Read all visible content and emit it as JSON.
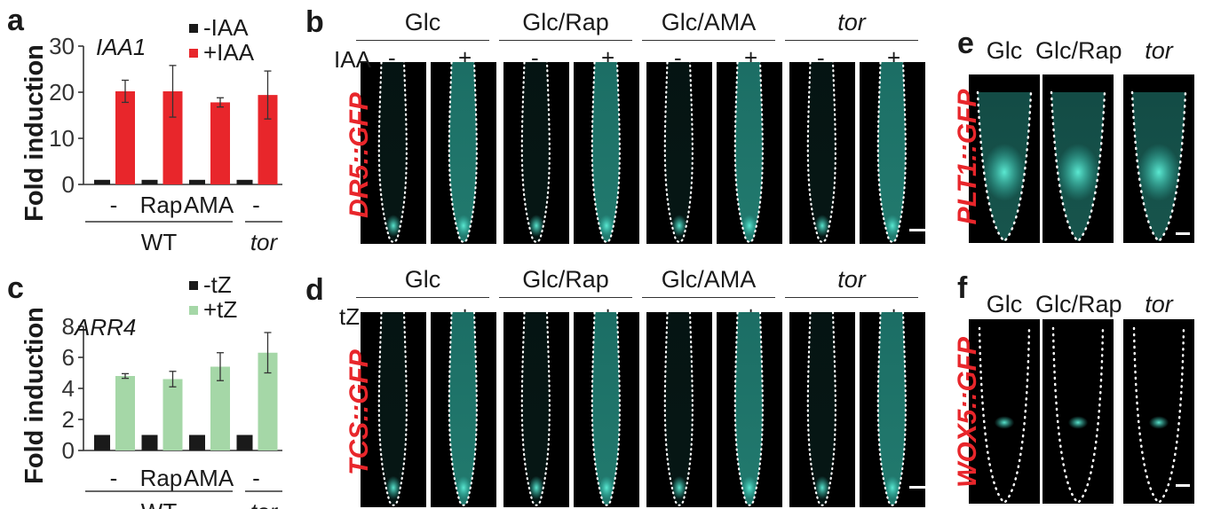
{
  "panels": {
    "a": "a",
    "b": "b",
    "c": "c",
    "d": "d",
    "e": "e",
    "f": "f"
  },
  "chart_data": [
    {
      "type": "bar",
      "panel": "a",
      "gene": "IAA1",
      "ylabel": "Fold induction",
      "ylim": [
        0,
        30
      ],
      "yticks": [
        "0",
        "10",
        "20",
        "30"
      ],
      "categories": [
        "-",
        "Rap",
        "AMA",
        "-"
      ],
      "groups": [
        {
          "label": "WT",
          "span": 3
        },
        {
          "label": "tor",
          "span": 1
        }
      ],
      "series": [
        {
          "name": "-IAA",
          "color": "#1a1a1a",
          "values": [
            1,
            1,
            1,
            1
          ],
          "errors": [
            0,
            0,
            0,
            0
          ]
        },
        {
          "name": "+IAA",
          "color": "#e8262b",
          "values": [
            20.2,
            20.2,
            17.8,
            19.4
          ],
          "errors": [
            2.4,
            5.6,
            1.0,
            5.2
          ]
        }
      ]
    },
    {
      "type": "bar",
      "panel": "c",
      "gene": "ARR4",
      "ylabel": "Fold induction",
      "ylim": [
        0,
        8
      ],
      "yticks": [
        "0",
        "2",
        "4",
        "6",
        "8"
      ],
      "categories": [
        "-",
        "Rap",
        "AMA",
        "-"
      ],
      "groups": [
        {
          "label": "WT",
          "span": 3
        },
        {
          "label": "tor",
          "span": 1
        }
      ],
      "series": [
        {
          "name": "-tZ",
          "color": "#1a1a1a",
          "values": [
            1,
            1,
            1,
            1
          ],
          "errors": [
            0,
            0,
            0,
            0
          ]
        },
        {
          "name": "+tZ",
          "color": "#a5d7a7",
          "values": [
            4.8,
            4.6,
            5.4,
            6.3
          ],
          "errors": [
            0.15,
            0.5,
            0.9,
            1.3
          ]
        }
      ]
    }
  ],
  "panel_b": {
    "reporter": "DR5::GFP",
    "treatment": "IAA",
    "groups": [
      "Glc",
      "Glc/Rap",
      "Glc/AMA",
      "tor"
    ],
    "signs": [
      "-",
      "+"
    ]
  },
  "panel_d": {
    "reporter": "TCS::GFP",
    "treatment": "tZ",
    "groups": [
      "Glc",
      "Glc/Rap",
      "Glc/AMA",
      "tor"
    ],
    "signs": [
      "-",
      "+"
    ]
  },
  "panel_e": {
    "reporter": "PLT1::GFP",
    "groups": [
      "Glc",
      "Glc/Rap",
      "tor"
    ]
  },
  "panel_f": {
    "reporter": "WOX5::GFP",
    "groups": [
      "Glc",
      "Glc/Rap",
      "tor"
    ]
  },
  "colors": {
    "gfp": "#33c0b0",
    "label_red": "#e8262b"
  }
}
